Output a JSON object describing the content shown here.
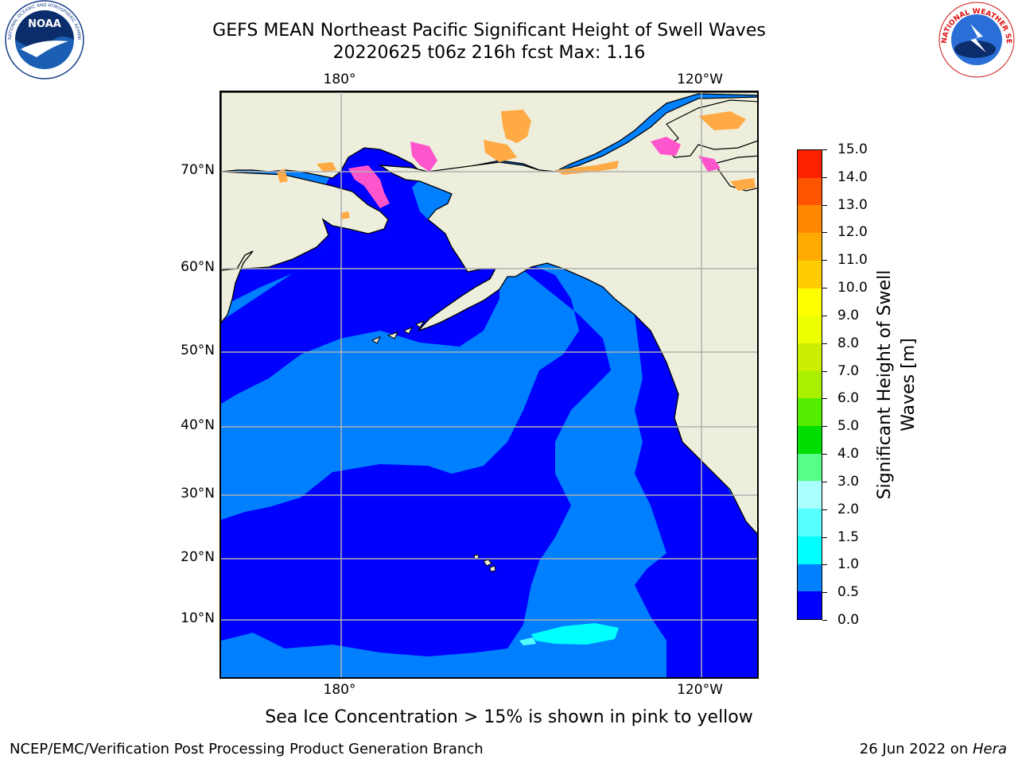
{
  "header": {
    "title": "GEFS MEAN Northeast Pacific Significant Height of Swell Waves",
    "subtitle": "20220625 t06z 216h fcst   Max: 1.16"
  },
  "logos": {
    "left": {
      "icon": "noaa-logo-icon",
      "text": "NOAA",
      "ring_text": "NATIONAL OCEANIC AND ATMOSPHERIC ADMINISTRATION · U.S. DEPARTMENT OF COMMERCE"
    },
    "right": {
      "icon": "nws-logo-icon",
      "ring_text": "NATIONAL WEATHER SERVICE"
    }
  },
  "map": {
    "top_lon_labels": [
      "180°",
      "120°W"
    ],
    "bottom_lon_labels": [
      "180°",
      "120°W"
    ],
    "lat_labels": [
      "70°N",
      "60°N",
      "50°N",
      "40°N",
      "30°N",
      "20°N",
      "10°N"
    ],
    "colors": {
      "land": "#eeeedd",
      "coast": "#000000",
      "grid": "#b0b0b0",
      "swell_0_0_5": "#0000ff",
      "swell_0_5_1_0": "#0080ff",
      "swell_1_0_1_5": "#00ffff",
      "ice_pink": "#ff55cc",
      "ice_orange": "#ffaa44"
    }
  },
  "colorbar": {
    "title_line1": "Significant Height of Swell",
    "title_line2": "Waves [m]",
    "tick_labels": [
      "0.0",
      "0.5",
      "1.0",
      "1.5",
      "2.0",
      "3.0",
      "4.0",
      "5.0",
      "6.0",
      "7.0",
      "8.0",
      "9.0",
      "10.0",
      "11.0",
      "12.0",
      "13.0",
      "14.0",
      "15.0"
    ],
    "colors": [
      "#0000ff",
      "#0080ff",
      "#00ffff",
      "#55ffff",
      "#aaffff",
      "#55ff88",
      "#00dd00",
      "#55ee00",
      "#aaee00",
      "#ccee00",
      "#eeff00",
      "#ffff00",
      "#ffcc00",
      "#ffaa00",
      "#ff8800",
      "#ff5500",
      "#ff2200"
    ]
  },
  "note": "Sea Ice Concentration > 15% is shown in pink to yellow",
  "footer": {
    "left": "NCEP/EMC/Verification Post Processing Product Generation Branch",
    "date": "26 Jun 2022 on ",
    "host": "Hera"
  }
}
